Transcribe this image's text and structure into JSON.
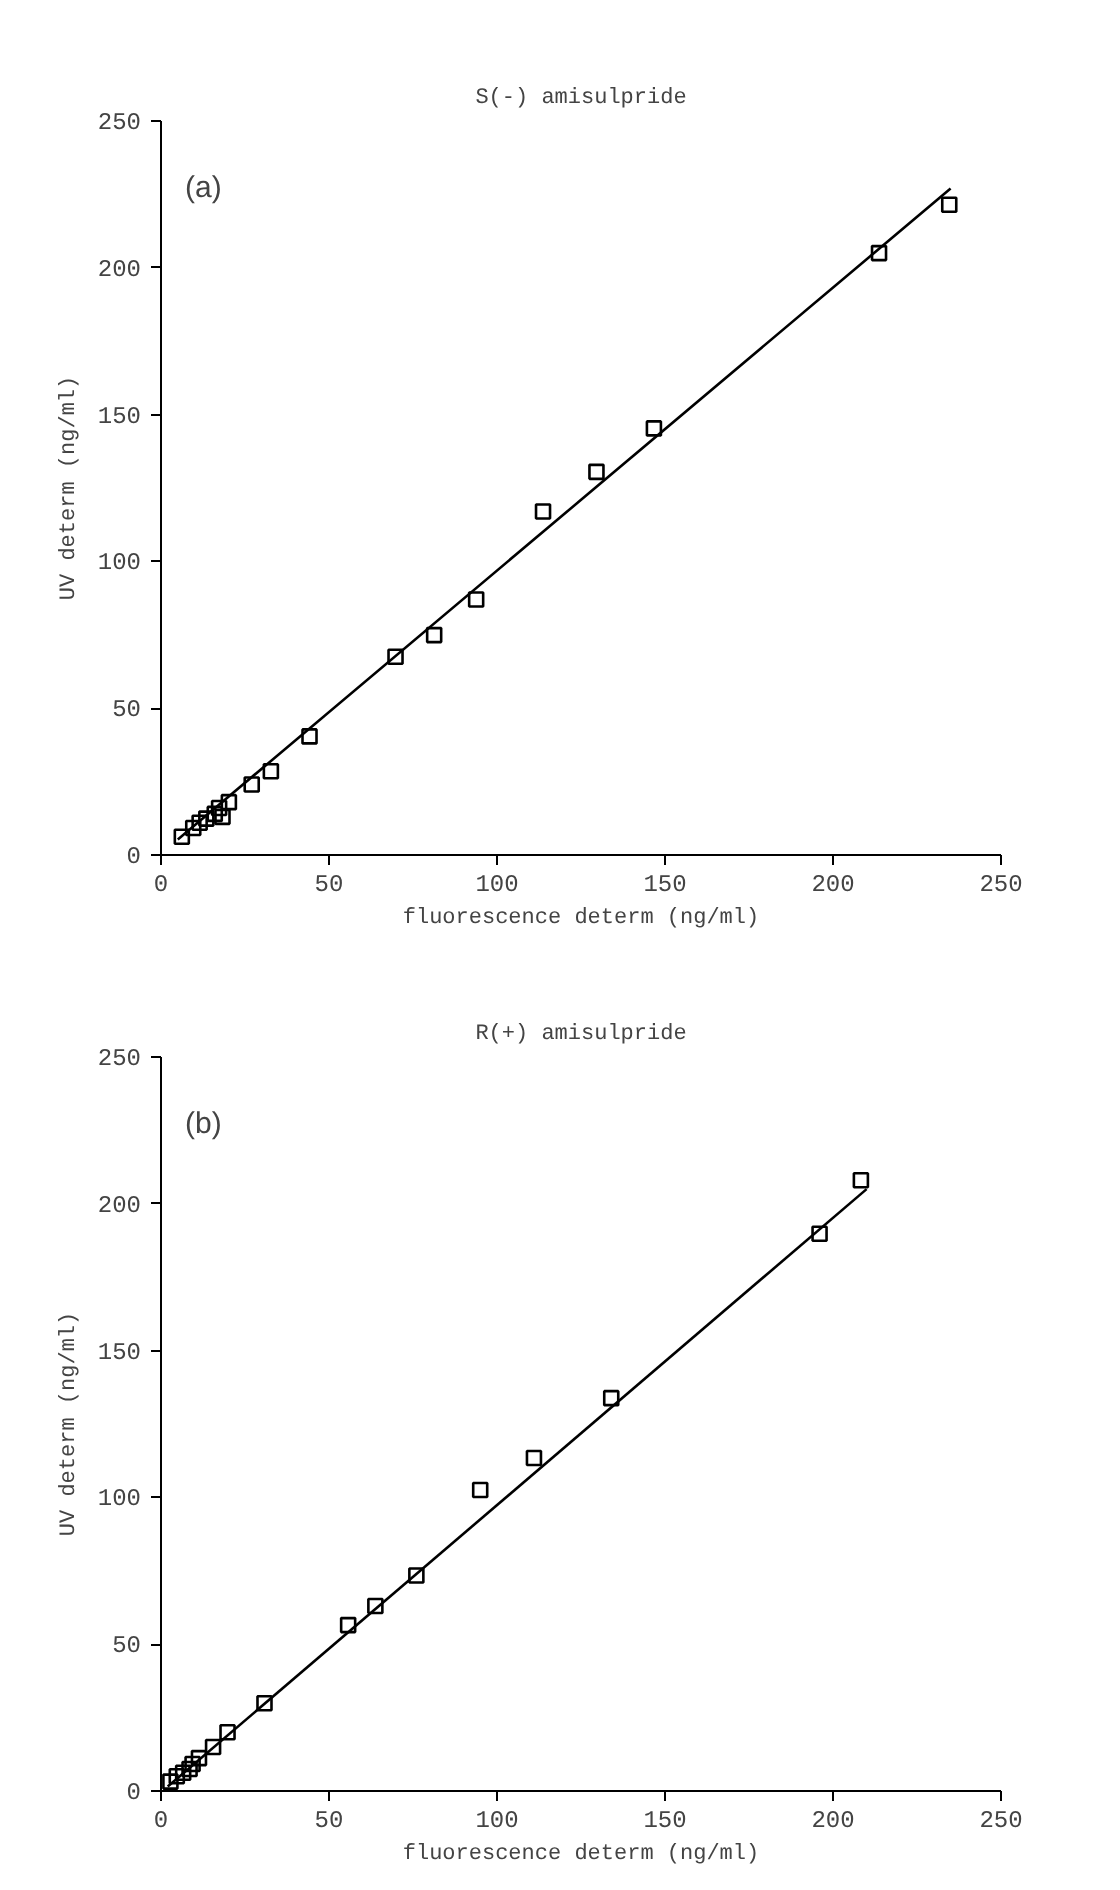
{
  "chart_data": [
    {
      "type": "scatter",
      "title": "S(-) amisulpride",
      "xlabel": "fluorescence determ (ng/ml)",
      "ylabel": "UV determ (ng/ml)",
      "annotations": [
        "(a)"
      ],
      "xlim": [
        0,
        250
      ],
      "ylim": [
        0,
        250
      ],
      "xticks": [
        0,
        50,
        100,
        150,
        200,
        250
      ],
      "yticks": [
        0,
        50,
        100,
        150,
        200,
        250
      ],
      "grid": false,
      "marker": "square",
      "series": [
        {
          "color": "#000000",
          "x": [
            6.2,
            9.6,
            11.5,
            13.5,
            16,
            17.3,
            18.3,
            20.2,
            27,
            32.7,
            44.2,
            69.8,
            81.3,
            93.8,
            113.7,
            129.6,
            146.7,
            213.7,
            234.6
          ],
          "values": [
            6.2,
            9.2,
            11,
            12.4,
            14,
            16,
            13,
            18,
            24,
            28.5,
            40.4,
            67.5,
            74.9,
            87,
            117,
            130.5,
            145.3,
            205,
            221.5
          ]
        },
        {
          "type": "line",
          "color": "#000000",
          "marker": "none",
          "line_style": "solid",
          "x": [
            5,
            235
          ],
          "values": [
            5.3,
            227
          ]
        }
      ]
    },
    {
      "type": "scatter",
      "title": "R(+) amisulpride",
      "xlabel": "fluorescence determ (ng/ml)",
      "ylabel": "UV determ (ng/ml)",
      "annotations": [
        "(b)"
      ],
      "xlim": [
        0,
        250
      ],
      "ylim": [
        0,
        250
      ],
      "xticks": [
        0,
        50,
        100,
        150,
        200,
        250
      ],
      "yticks": [
        0,
        50,
        100,
        150,
        200,
        250
      ],
      "grid": false,
      "marker": "square",
      "series": [
        {
          "color": "#000000",
          "x": [
            2.8,
            4.7,
            6.6,
            8.5,
            9.4,
            11.3,
            15.5,
            19.8,
            30.8,
            55.7,
            63.8,
            76,
            95,
            111,
            134,
            196,
            208.3
          ],
          "values": [
            3.2,
            5,
            6.2,
            7.5,
            9.2,
            11.2,
            15,
            20,
            29.9,
            56.5,
            63,
            73.4,
            102.5,
            113.4,
            133.8,
            189.8,
            208
          ]
        },
        {
          "type": "line",
          "color": "#000000",
          "marker": "none",
          "line_style": "solid",
          "x": [
            2,
            210
          ],
          "values": [
            1.5,
            205
          ]
        }
      ]
    }
  ]
}
